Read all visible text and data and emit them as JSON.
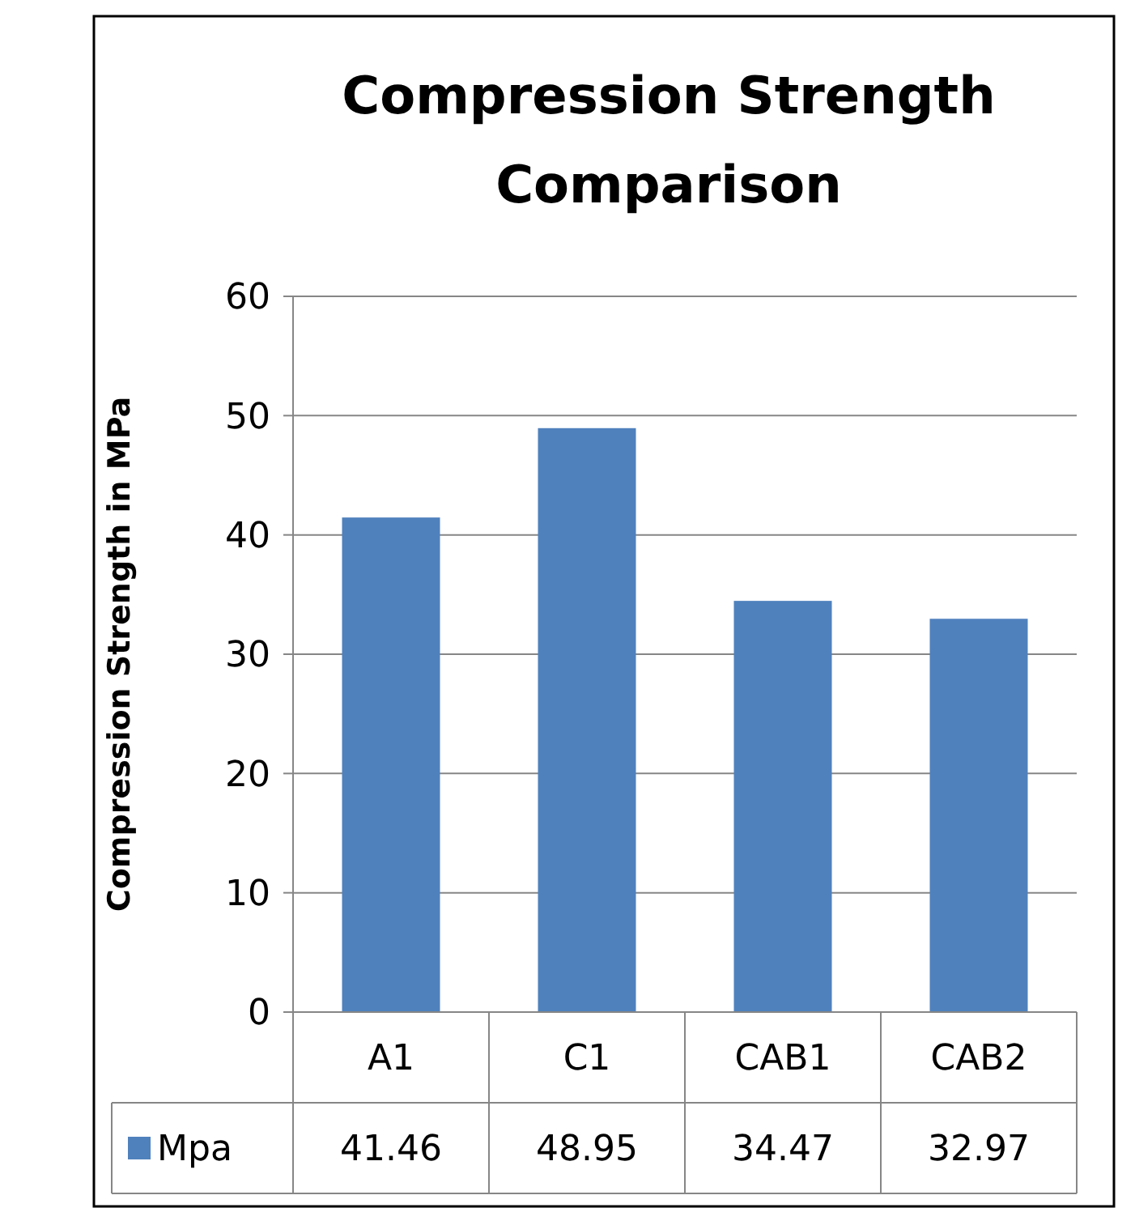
{
  "chart_data": {
    "type": "bar",
    "title": "Compression Strength Comparison",
    "ylabel": "Compression Strength in MPa",
    "categories": [
      "A1",
      "C1",
      "CAB1",
      "CAB2"
    ],
    "series": [
      {
        "name": "Mpa",
        "color": "#4f81bd",
        "values": [
          41.46,
          48.95,
          34.47,
          32.97
        ]
      }
    ],
    "ylim": [
      0,
      60
    ],
    "yticks": [
      0,
      10,
      20,
      30,
      40,
      50,
      60
    ],
    "grid": "y",
    "legend": "bottom",
    "data_labels": true
  }
}
